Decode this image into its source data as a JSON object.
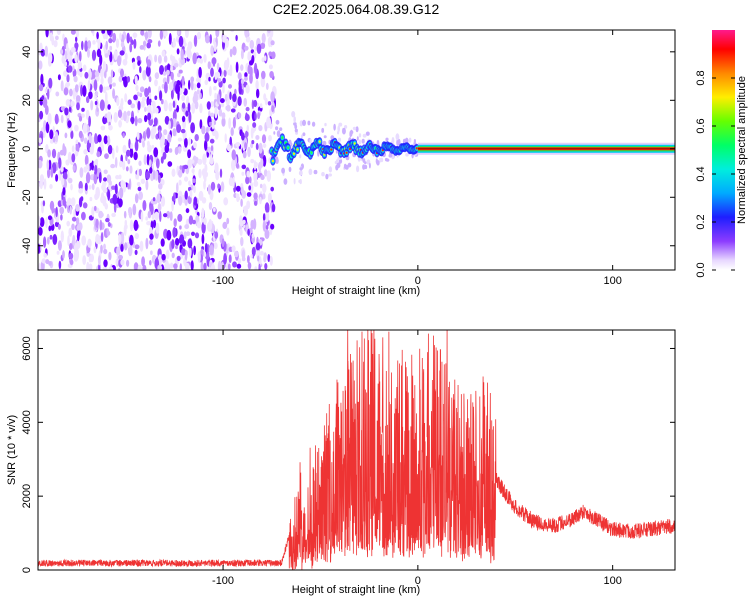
{
  "title": "C2E2.2025.064.08.39.G12",
  "chart_data": [
    {
      "type": "heatmap",
      "xlabel": "Height of straight line (km)",
      "ylabel": "Frequency (Hz)",
      "xlim": [
        -195,
        132
      ],
      "ylim": [
        -50,
        49
      ],
      "xticks": [
        -100,
        0,
        100
      ],
      "xtick_labels": [
        "-100",
        "0",
        "100"
      ],
      "yticks": [
        -40,
        -20,
        0,
        20,
        40
      ],
      "ytick_labels": [
        "-40",
        "-20",
        "0",
        "20",
        "40"
      ],
      "noise_region_x": [
        -195,
        -75
      ],
      "transition_region_x": [
        -75,
        0
      ],
      "signal_frequency_hz": 0,
      "colorbar": {
        "label": "Normalized spectral amplitude",
        "range": [
          0,
          1
        ],
        "ticks": [
          0.0,
          0.2,
          0.4,
          0.6,
          0.8
        ],
        "tick_labels": [
          "0.0",
          "0.2",
          "0.4",
          "0.6",
          "0.8"
        ]
      }
    },
    {
      "type": "line",
      "xlabel": "Height of straight line (km)",
      "ylabel": "SNR (10 * v/v)",
      "xlim": [
        -195,
        132
      ],
      "ylim": [
        0,
        6500
      ],
      "xticks": [
        -100,
        0,
        100
      ],
      "xtick_labels": [
        "-100",
        "0",
        "100"
      ],
      "yticks": [
        0,
        2000,
        4000,
        6000
      ],
      "ytick_labels": [
        "0",
        "2000",
        "4000",
        "6000"
      ],
      "color": "#ee3333",
      "envelope": {
        "x": [
          -195,
          -70,
          -66,
          -60,
          -50,
          -45,
          -40,
          -33,
          -25,
          -20,
          -15,
          -10,
          -5,
          0,
          5,
          12,
          17,
          22,
          28,
          33,
          36,
          42,
          50,
          60,
          70,
          80,
          85,
          92,
          100,
          110,
          120,
          132
        ],
        "y": [
          150,
          150,
          900,
          1500,
          2100,
          2600,
          3000,
          3400,
          3700,
          3800,
          3600,
          3300,
          3200,
          3400,
          3600,
          3800,
          3500,
          2800,
          2600,
          2900,
          2950,
          2300,
          1700,
          1300,
          1200,
          1400,
          1600,
          1350,
          1100,
          1050,
          1100,
          1200
        ]
      },
      "annotated_peaks": [
        {
          "x": -36,
          "y": 6500
        },
        {
          "x": -18,
          "y": 6300
        },
        {
          "x": 5,
          "y": 5900
        }
      ]
    }
  ]
}
